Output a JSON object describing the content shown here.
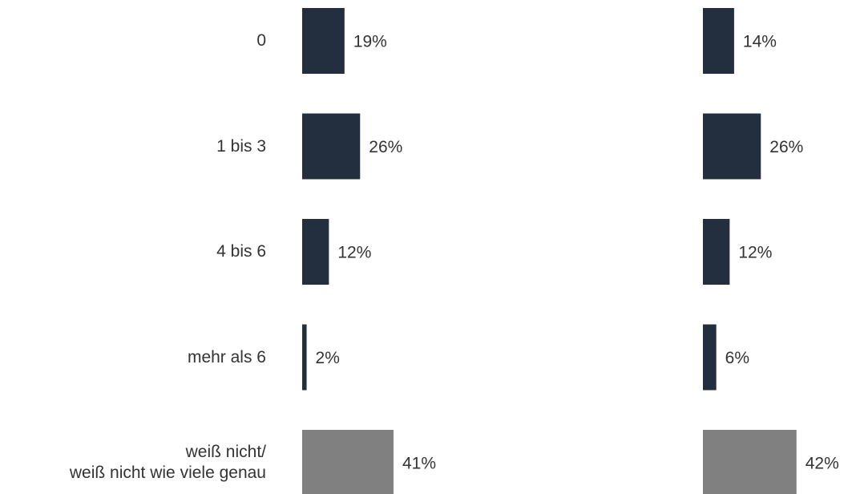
{
  "chart_data": {
    "type": "bar",
    "orientation": "horizontal",
    "categories": [
      "0",
      "1 bis 3",
      "4 bis 6",
      "mehr als 6",
      "weiß nicht/\nweiß nicht wie viele genau"
    ],
    "series": [
      {
        "values": [
          19,
          26,
          12,
          2,
          41
        ],
        "value_labels": [
          "19%",
          "26%",
          "12%",
          "2%",
          "41%"
        ],
        "colors": [
          "#232f3e",
          "#232f3e",
          "#232f3e",
          "#232f3e",
          "#808080"
        ]
      },
      {
        "values": [
          14,
          26,
          12,
          6,
          42
        ],
        "value_labels": [
          "14%",
          "26%",
          "12%",
          "6%",
          "42%"
        ],
        "colors": [
          "#232f3e",
          "#232f3e",
          "#232f3e",
          "#232f3e",
          "#808080"
        ]
      }
    ]
  }
}
